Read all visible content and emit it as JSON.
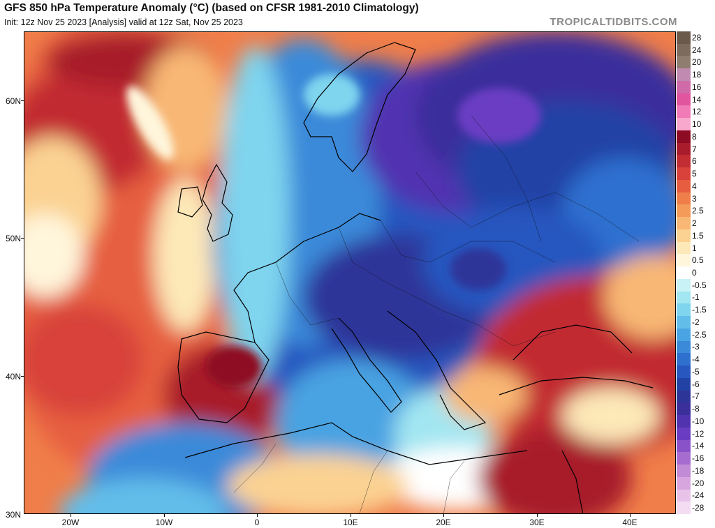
{
  "header": {
    "title": "GFS 850 hPa Temperature Anomaly (°C) (based on CFSR 1981-2010 Climatology)",
    "subtitle": "Init: 12z Nov 25 2023   [Analysis]   valid at 12z Sat, Nov 25 2023",
    "site": "TROPICALTIDBITS.COM"
  },
  "axes": {
    "lat_labels": [
      "60N",
      "50N",
      "40N",
      "30N"
    ],
    "lon_labels": [
      "20W",
      "10W",
      "0",
      "10E",
      "20E",
      "30E",
      "40E"
    ]
  },
  "colors": {
    "warm_deep": "#b2182b",
    "warm_mid": "#e34a33",
    "warm_light": "#fdae61",
    "neutral": "#ffffff",
    "cold_light": "#8fd6ee",
    "cold_mid": "#2f6fd6",
    "cold_deep": "#4a2fa8"
  },
  "legend": {
    "items": [
      {
        "label": "28",
        "color": "#6b5a4a"
      },
      {
        "label": "24",
        "color": "#7d6c5d"
      },
      {
        "label": "20",
        "color": "#8f7e70"
      },
      {
        "label": "18",
        "color": "#c18ab0"
      },
      {
        "label": "16",
        "color": "#d06aa8"
      },
      {
        "label": "14",
        "color": "#e0559d"
      },
      {
        "label": "12",
        "color": "#f07bb7"
      },
      {
        "label": "10",
        "color": "#f7a8cc"
      },
      {
        "label": "8",
        "color": "#8e0c23"
      },
      {
        "label": "7",
        "color": "#a81c2c"
      },
      {
        "label": "6",
        "color": "#c22c33"
      },
      {
        "label": "5",
        "color": "#d8423a"
      },
      {
        "label": "4",
        "color": "#e65e3f"
      },
      {
        "label": "3",
        "color": "#f07e4a"
      },
      {
        "label": "2.5",
        "color": "#f59b5a"
      },
      {
        "label": "2",
        "color": "#f8b774"
      },
      {
        "label": "1.5",
        "color": "#fbd292"
      },
      {
        "label": "1",
        "color": "#fde8b8"
      },
      {
        "label": "0.5",
        "color": "#fff6dc"
      },
      {
        "label": "0",
        "color": "#ffffff"
      },
      {
        "label": "-0.5",
        "color": "#c8f2f6"
      },
      {
        "label": "-1",
        "color": "#a2e6f1"
      },
      {
        "label": "-1.5",
        "color": "#7fd4ee"
      },
      {
        "label": "-2",
        "color": "#62bde9"
      },
      {
        "label": "-2.5",
        "color": "#4aa3e2"
      },
      {
        "label": "-3",
        "color": "#3a8ad9"
      },
      {
        "label": "-4",
        "color": "#2f70cf"
      },
      {
        "label": "-5",
        "color": "#2757bf"
      },
      {
        "label": "-6",
        "color": "#2342a6"
      },
      {
        "label": "-7",
        "color": "#2d3599"
      },
      {
        "label": "-8",
        "color": "#3b2f9c"
      },
      {
        "label": "-10",
        "color": "#5133b0"
      },
      {
        "label": "-12",
        "color": "#6a3cc2"
      },
      {
        "label": "-14",
        "color": "#8a52c9"
      },
      {
        "label": "-16",
        "color": "#a66ccf"
      },
      {
        "label": "-18",
        "color": "#c28bd6"
      },
      {
        "label": "-20",
        "color": "#d8a6df"
      },
      {
        "label": "-24",
        "color": "#e8c2e8"
      },
      {
        "label": "-28",
        "color": "#f4dcf2"
      }
    ]
  }
}
